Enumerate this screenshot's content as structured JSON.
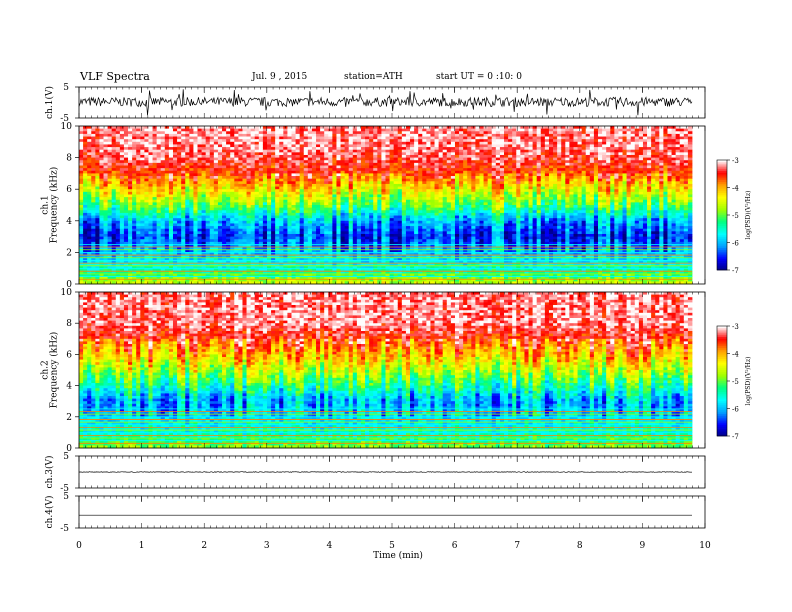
{
  "header": {
    "title": "VLF Spectra",
    "date": "Jul. 9 , 2015",
    "station": "station=ATH",
    "start": "start UT = 0 :10: 0"
  },
  "xaxis": {
    "label": "Time (min)",
    "ticks": [
      "0",
      "1",
      "2",
      "3",
      "4",
      "5",
      "6",
      "7",
      "8",
      "9",
      "10"
    ]
  },
  "panels": {
    "ch1_wave": {
      "ylabel": "ch.1(V)",
      "ticks": [
        "5",
        "-5"
      ]
    },
    "ch1_spec": {
      "ylabel": "ch.1\nFrequency (kHz)",
      "ticks": [
        "10",
        "8",
        "6",
        "4",
        "2",
        "0"
      ]
    },
    "ch2_spec": {
      "ylabel": "ch.2\nFrequency (kHz)",
      "ticks": [
        "10",
        "8",
        "6",
        "4",
        "2",
        "0"
      ]
    },
    "ch3_wave": {
      "ylabel": "ch.3(V)",
      "ticks": [
        "5",
        "-5"
      ]
    },
    "ch4_wave": {
      "ylabel": "ch.4(V)",
      "ticks": [
        "5",
        "-5"
      ]
    }
  },
  "colorbar": {
    "label": "log(PSD)(V²/Hz)",
    "ticks": [
      "-3",
      "-4",
      "-5",
      "-6",
      "-7"
    ],
    "colors": [
      "#000080",
      "#0000ff",
      "#00a0ff",
      "#00ffff",
      "#00ff80",
      "#a0ff00",
      "#ffff00",
      "#ffa000",
      "#ff0000",
      "#ffffff"
    ]
  },
  "chart_data": [
    {
      "type": "line",
      "name": "ch.1 waveform",
      "xlim": [
        0,
        10
      ],
      "ylim": [
        -5,
        5
      ],
      "description_values": {
        "mean": 0.2,
        "amplitude_typical": 1.5,
        "spikes_to": 4.5
      }
    },
    {
      "type": "heatmap",
      "name": "ch.1 spectrogram",
      "xlim": [
        0,
        10
      ],
      "ylim": [
        0,
        10
      ],
      "freq_bands_kHz": [
        0,
        1,
        2,
        3,
        4,
        5,
        6,
        7,
        8,
        9,
        10
      ],
      "logPSD": [
        -4.5,
        -5.5,
        -6.0,
        -6.5,
        -6.0,
        -5.0,
        -4.3,
        -3.6,
        -3.3,
        -3.2
      ],
      "colorbar_range": [
        -7,
        -3
      ]
    },
    {
      "type": "heatmap",
      "name": "ch.2 spectrogram",
      "xlim": [
        0,
        10
      ],
      "ylim": [
        0,
        10
      ],
      "freq_bands_kHz": [
        0,
        1,
        2,
        3,
        4,
        5,
        6,
        7,
        8,
        9,
        10
      ],
      "logPSD": [
        -4.8,
        -5.5,
        -5.8,
        -6.0,
        -5.3,
        -4.6,
        -4.0,
        -3.5,
        -3.2,
        -3.2
      ],
      "colorbar_range": [
        -7,
        -3
      ]
    },
    {
      "type": "line",
      "name": "ch.3 waveform",
      "xlim": [
        0,
        10
      ],
      "ylim": [
        -5,
        5
      ],
      "description_values": {
        "mean": 0.0,
        "amplitude_typical": 0.1
      }
    },
    {
      "type": "line",
      "name": "ch.4 waveform",
      "xlim": [
        0,
        10
      ],
      "ylim": [
        -5,
        5
      ],
      "description_values": {
        "mean": -1.0,
        "amplitude_typical": 0.0
      }
    }
  ]
}
